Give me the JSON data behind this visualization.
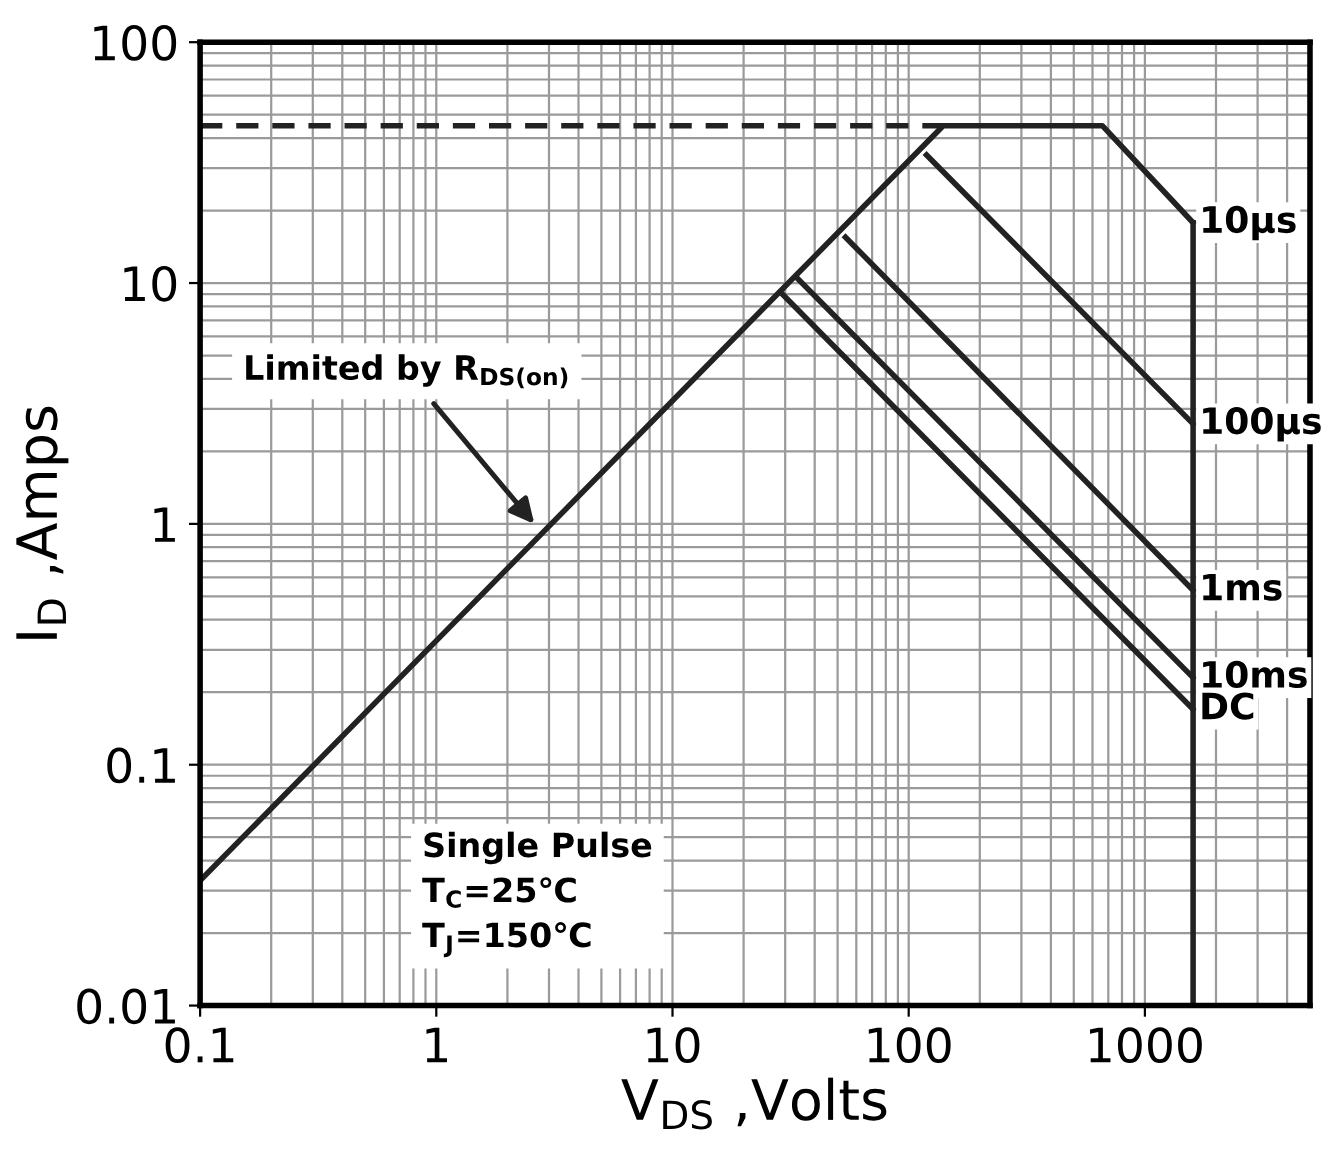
{
  "chart_data": {
    "type": "line",
    "xlabel": "V$_{DS}$ ,Volts",
    "ylabel": "I$_{D}$ ,Amps",
    "log": "xy",
    "grid": true,
    "legend": false,
    "marker": "none",
    "xlim": [
      0.1,
      5000
    ],
    "ylim": [
      0.01,
      100
    ],
    "xticks": [
      0.1,
      1,
      10,
      100,
      1000
    ],
    "yticks": [
      0.01,
      0.1,
      1,
      10,
      100
    ],
    "series": [
      {
        "name": "10µs",
        "color": "#222222",
        "x": [
          0.1,
          140,
          660,
          1600
        ],
        "values": [
          0.033,
          45,
          45,
          17.8
        ]
      },
      {
        "color": "#222222",
        "x": [
          1600,
          1600
        ],
        "values": [
          17.8,
          0.01
        ]
      },
      {
        "color": "#222222",
        "line_style": "dashed",
        "x": [
          0.1,
          140
        ],
        "values": [
          45,
          45
        ]
      },
      {
        "name": "100µs",
        "color": "#222222",
        "x": [
          119,
          1600
        ],
        "values": [
          34,
          2.6
        ]
      },
      {
        "name": "1ms",
        "color": "#222222",
        "x": [
          54,
          1600
        ],
        "values": [
          15.5,
          0.53
        ]
      },
      {
        "name": "10ms",
        "color": "#222222",
        "x": [
          34,
          1600
        ],
        "values": [
          10.4,
          0.23
        ]
      },
      {
        "name": "DC",
        "color": "#222222",
        "x": [
          29.5,
          1600
        ],
        "values": [
          8.9,
          0.17
        ]
      }
    ],
    "annotations": [
      {
        "text": "Limited by R$_{DS(on)}$",
        "x": 2.6,
        "y": 1
      },
      "Single Pulse\nT$_{C}$=25℃\nT$_{J}$=150℃"
    ]
  }
}
